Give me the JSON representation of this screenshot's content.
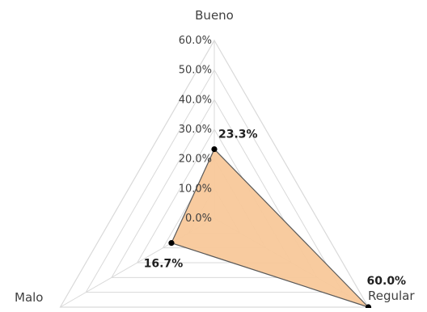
{
  "chart_data": {
    "type": "radar",
    "categories": [
      "Bueno",
      "Regular",
      "Malo"
    ],
    "values": [
      23.3,
      60.0,
      16.7
    ],
    "data_labels": [
      "23.3%",
      "60.0%",
      "16.7%"
    ],
    "rlim": [
      0,
      60
    ],
    "ticks": [
      "0.0%",
      "10.0%",
      "20.0%",
      "30.0%",
      "40.0%",
      "50.0%",
      "60.0%"
    ],
    "grid": true,
    "legend": "none",
    "fill_color": "#f8c89a",
    "line_color": "#595959",
    "grid_color": "#d9d9d9",
    "marker_color": "#000000"
  }
}
